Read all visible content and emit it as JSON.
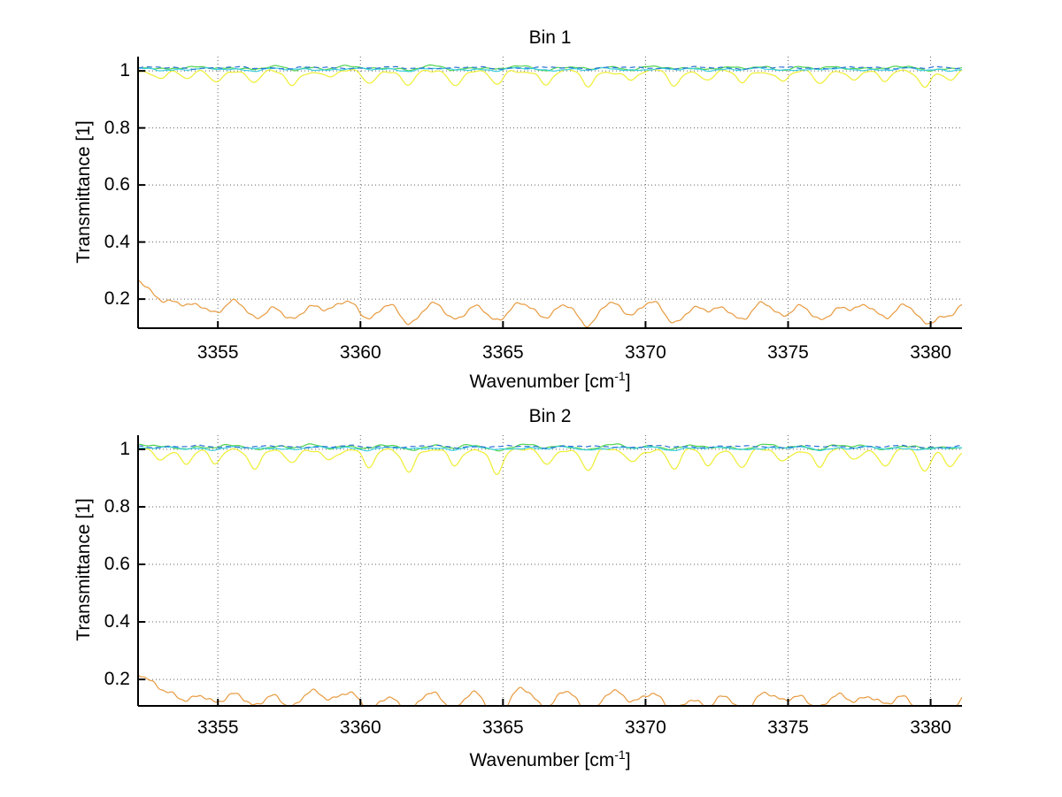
{
  "figure": {
    "background": "#ffffff",
    "axis_color": "#000000",
    "grid_color": "#606060"
  },
  "chart_data": [
    {
      "type": "line",
      "title": "Bin 1",
      "xlabel": {
        "pre": "Wavenumber [cm",
        "sup": "-1",
        "post": "]"
      },
      "ylabel": "Transmittance [1]",
      "xlim": [
        3352.2,
        3381.1
      ],
      "ylim": [
        0.098,
        1.05
      ],
      "xticks": [
        3355,
        3360,
        3365,
        3370,
        3375,
        3380
      ],
      "yticks": [
        0.2,
        0.4,
        0.6,
        0.8,
        1
      ],
      "grid": "dotted",
      "legend": "none",
      "dips": {
        "centers": [
          3353.0,
          3353.9,
          3354.9,
          3356.3,
          3357.6,
          3358.9,
          3360.3,
          3361.7,
          3363.3,
          3364.8,
          3366.5,
          3368.0,
          3369.5,
          3371.0,
          3372.2,
          3373.4,
          3374.8,
          3376.1,
          3377.3,
          3378.4,
          3379.8,
          3380.7
        ],
        "depths": [
          0.02,
          0.028,
          0.032,
          0.042,
          0.048,
          0.022,
          0.038,
          0.052,
          0.046,
          0.05,
          0.042,
          0.055,
          0.03,
          0.048,
          0.028,
          0.042,
          0.032,
          0.046,
          0.022,
          0.036,
          0.05,
          0.03
        ],
        "width": 0.28
      },
      "series": [
        {
          "name": "series-yellow",
          "color": "#EEEE33",
          "baseline": 0.998,
          "noise": 0.009,
          "seed": 4,
          "dip_scale": 1.0,
          "dip_width_scale": 1.0
        },
        {
          "name": "series-green",
          "color": "#4FD44F",
          "baseline": 1.014,
          "noise": 0.0075,
          "seed": 3,
          "dip_scale": 0.22,
          "dip_width_scale": 1.3
        },
        {
          "name": "series-cyan",
          "color": "#38CFE0",
          "baseline": 1.007,
          "noise": 0.006,
          "seed": 2,
          "dip_scale": 0.1,
          "dip_width_scale": 1.3
        },
        {
          "name": "series-blue",
          "color": "#2B6FD6",
          "baseline": 1.011,
          "noise": 0.005,
          "seed": 7,
          "dip_scale": 0.04,
          "dash": "6 4"
        },
        {
          "name": "series-orange",
          "color": "#E79A3F",
          "baseline": 0.203,
          "noise": 0.013,
          "seed": 5,
          "dip_scale": 1.7,
          "dip_width_scale": 1.9,
          "noise_freq": 1.5,
          "edge_bump": {
            "amp": 0.062,
            "scale": 1.6
          }
        }
      ]
    },
    {
      "type": "line",
      "title": "Bin 2",
      "xlabel": {
        "pre": "Wavenumber [cm",
        "sup": "-1",
        "post": "]"
      },
      "ylabel": "Transmittance [1]",
      "xlim": [
        3352.2,
        3381.1
      ],
      "ylim": [
        0.108,
        1.049
      ],
      "xticks": [
        3355,
        3360,
        3365,
        3370,
        3375,
        3380
      ],
      "yticks": [
        0.2,
        0.4,
        0.6,
        0.8,
        1
      ],
      "grid": "dotted",
      "legend": "none",
      "dips": {
        "centers": [
          3353.0,
          3353.9,
          3354.9,
          3356.3,
          3357.6,
          3358.9,
          3360.3,
          3361.7,
          3363.3,
          3364.8,
          3366.5,
          3368.0,
          3369.5,
          3371.0,
          3372.2,
          3373.4,
          3374.8,
          3376.1,
          3377.3,
          3378.4,
          3379.8,
          3380.7
        ],
        "depths": [
          0.03,
          0.042,
          0.05,
          0.058,
          0.052,
          0.03,
          0.062,
          0.07,
          0.058,
          0.078,
          0.05,
          0.072,
          0.04,
          0.068,
          0.048,
          0.062,
          0.04,
          0.058,
          0.032,
          0.05,
          0.078,
          0.05
        ],
        "width": 0.28
      },
      "series": [
        {
          "name": "series-yellow",
          "color": "#EEEE33",
          "baseline": 0.997,
          "noise": 0.01,
          "seed": 9,
          "dip_scale": 1.0,
          "dip_width_scale": 1.0
        },
        {
          "name": "series-green",
          "color": "#4FD44F",
          "baseline": 1.013,
          "noise": 0.008,
          "seed": 8,
          "dip_scale": 0.2,
          "dip_width_scale": 1.3
        },
        {
          "name": "series-cyan",
          "color": "#38CFE0",
          "baseline": 1.006,
          "noise": 0.006,
          "seed": 6,
          "dip_scale": 0.1,
          "dip_width_scale": 1.3
        },
        {
          "name": "series-blue",
          "color": "#2B6FD6",
          "baseline": 1.01,
          "noise": 0.005,
          "seed": 11,
          "dip_scale": 0.04,
          "dash": "6 4"
        },
        {
          "name": "series-orange",
          "color": "#E79A3F",
          "baseline": 0.175,
          "noise": 0.014,
          "seed": 10,
          "dip_scale": 1.3,
          "dip_width_scale": 1.9,
          "noise_freq": 1.5,
          "edge_bump": {
            "amp": 0.05,
            "scale": 1.6
          }
        }
      ]
    }
  ]
}
